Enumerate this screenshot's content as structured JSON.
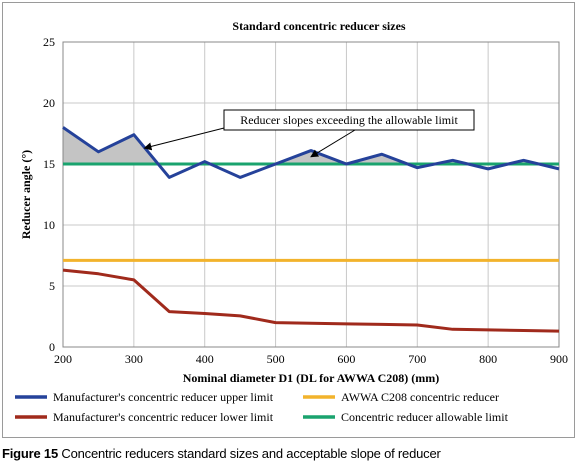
{
  "chart_data": {
    "type": "line",
    "title": "Standard concentric reducer sizes",
    "xlabel": "Nominal diameter D1 (DL for AWWA C208) (mm)",
    "ylabel": "Reducer angle (°)",
    "xlim": [
      200,
      900
    ],
    "ylim": [
      0,
      25
    ],
    "xticks": [
      200,
      300,
      400,
      500,
      600,
      700,
      800,
      900
    ],
    "yticks": [
      0,
      5,
      10,
      15,
      20,
      25
    ],
    "grid": true,
    "legend_position": "bottom",
    "series": [
      {
        "name": "Manufacturer's concentric reducer upper limit",
        "color": "#25429a",
        "x": [
          200,
          250,
          300,
          350,
          400,
          450,
          500,
          550,
          600,
          650,
          700,
          750,
          800,
          850,
          900
        ],
        "y": [
          18.0,
          16.0,
          17.4,
          13.9,
          15.2,
          13.9,
          15.0,
          16.1,
          15.0,
          15.8,
          14.7,
          15.3,
          14.6,
          15.3,
          14.6
        ]
      },
      {
        "name": "Manufacturer's concentric reducer lower limit",
        "color": "#a02a1c",
        "x": [
          200,
          250,
          300,
          350,
          400,
          450,
          500,
          550,
          600,
          650,
          700,
          750,
          800,
          850,
          900
        ],
        "y": [
          6.3,
          6.0,
          5.5,
          2.9,
          2.75,
          2.55,
          2.0,
          1.95,
          1.9,
          1.85,
          1.8,
          1.45,
          1.4,
          1.35,
          1.3
        ]
      },
      {
        "name": "AWWA C208 concentric reducer",
        "color": "#f2b32c",
        "x": [
          200,
          900
        ],
        "y": [
          7.1,
          7.1
        ]
      },
      {
        "name": "Concentric reducer allowable limit",
        "color": "#1aa36e",
        "x": [
          200,
          900
        ],
        "y": [
          15.0,
          15.0
        ]
      }
    ],
    "annotation": {
      "text": "Reducer slopes exceeding the allowable limit",
      "arrow_targets": [
        [
          315,
          16.3
        ],
        [
          550,
          15.6
        ]
      ]
    },
    "shading_color": "#c4c4c4"
  },
  "figure": {
    "label": "Figure 15",
    "caption": "Concentric reducers standard sizes and acceptable slope of reducer"
  }
}
